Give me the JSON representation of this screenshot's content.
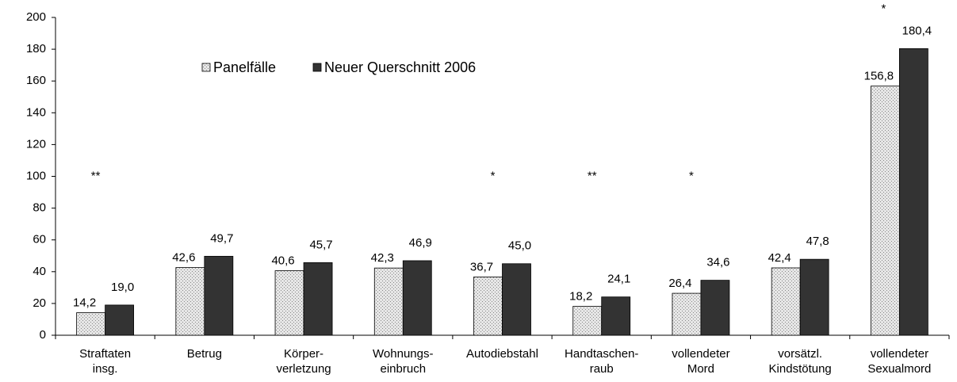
{
  "chart_data": {
    "type": "bar",
    "categories": [
      [
        "Straftaten",
        "insg."
      ],
      [
        "Betrug"
      ],
      [
        "Körper-",
        "verletzung"
      ],
      [
        "Wohnungs-",
        "einbruch"
      ],
      [
        "Autodiebstahl"
      ],
      [
        "Handtaschen-",
        "raub"
      ],
      [
        "vollendeter",
        "Mord"
      ],
      [
        "vorsätzl.",
        "Kindstötung"
      ],
      [
        "vollendeter",
        "Sexualmord"
      ]
    ],
    "series": [
      {
        "name": "Panelfälle",
        "color": "#e6e6e6",
        "values": [
          14.2,
          42.6,
          40.6,
          42.3,
          36.7,
          18.2,
          26.4,
          42.4,
          156.8
        ],
        "value_labels": [
          "14,2",
          "42,6",
          "40,6",
          "42,3",
          "36,7",
          "18,2",
          "26,4",
          "42,4",
          "156,8"
        ]
      },
      {
        "name": "Neuer Querschnitt 2006",
        "color": "#333333",
        "values": [
          19.0,
          49.7,
          45.7,
          46.9,
          45.0,
          24.1,
          34.6,
          47.8,
          180.4
        ],
        "value_labels": [
          "19,0",
          "49,7",
          "45,7",
          "46,9",
          "45,0",
          "24,1",
          "34,6",
          "47,8",
          "180,4"
        ]
      }
    ],
    "significance": [
      "**",
      null,
      null,
      null,
      "*",
      "**",
      "*",
      null,
      "*"
    ],
    "ylim": [
      0,
      200
    ],
    "yticks": [
      0,
      20,
      40,
      60,
      80,
      100,
      120,
      140,
      160,
      180,
      200
    ],
    "grid": false
  }
}
